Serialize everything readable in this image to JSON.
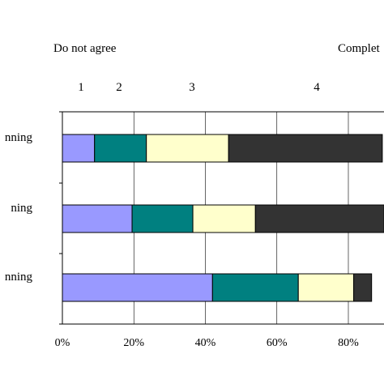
{
  "chart_data": {
    "type": "bar",
    "orientation": "horizontal",
    "stacked": "percent",
    "scale_labels": {
      "left": "Do not agree",
      "right": "Complet"
    },
    "scale_numbers": [
      "1",
      "2",
      "3",
      "4"
    ],
    "categories": [
      "nning",
      "ning",
      "nning"
    ],
    "series": [
      {
        "values": [
          9,
          19.5,
          42
        ],
        "color": "#9999ff"
      },
      {
        "values": [
          14.5,
          17,
          24
        ],
        "color": "#008080"
      },
      {
        "values": [
          23,
          17.5,
          15.5
        ],
        "color": "#ffffcc"
      },
      {
        "values": [
          43,
          36,
          5
        ],
        "color": "#333333"
      }
    ],
    "x_ticks": [
      "0%",
      "20%",
      "40%",
      "60%",
      "80%"
    ],
    "xlim": [
      0,
      100
    ],
    "grid": true,
    "legend": "none"
  }
}
